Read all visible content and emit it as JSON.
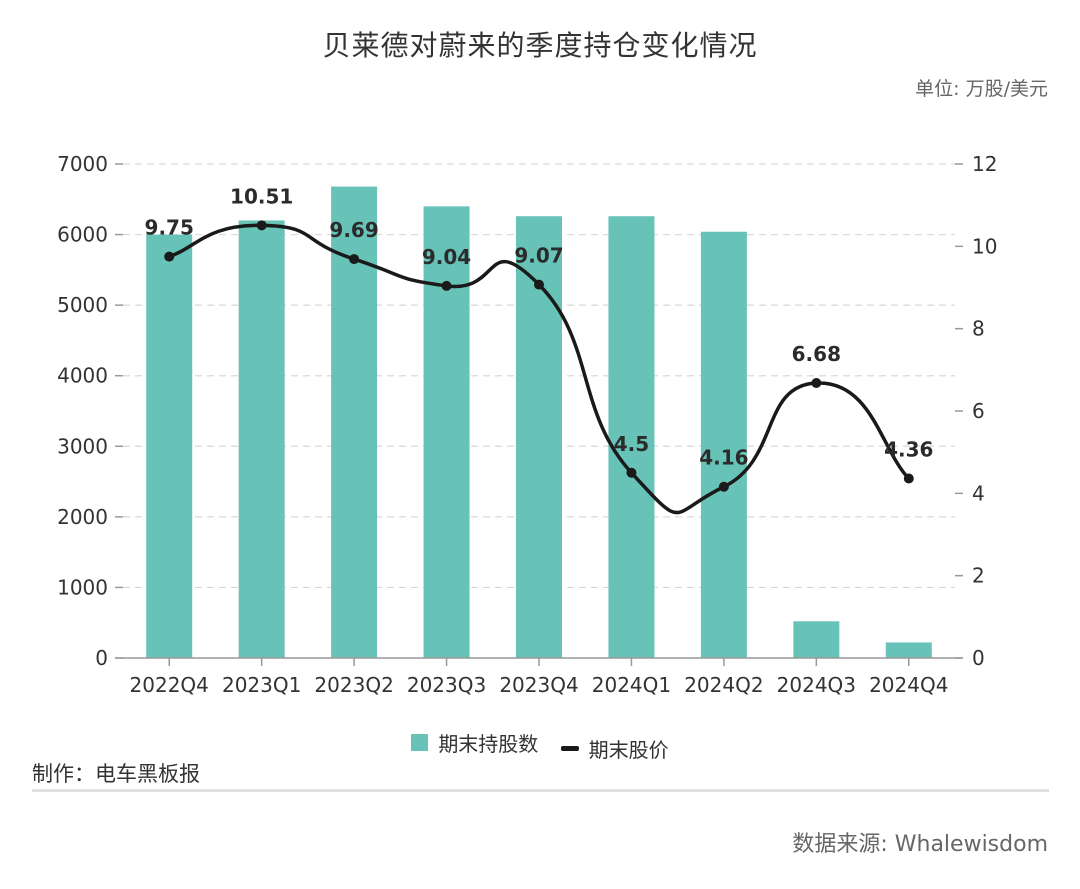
{
  "title": "贝莱德对蔚来的季度持仓变化情况",
  "unit_label": "单位: 万股/美元",
  "maker": "制作：电车黑板报",
  "source": "数据来源: Whalewisdom",
  "colors": {
    "bar": "#67c2b7",
    "line": "#1a1a1a",
    "grid": "#d9d9d9",
    "axis": "#999999"
  },
  "chart_data": {
    "type": "bar",
    "categories": [
      "2022Q4",
      "2023Q1",
      "2023Q2",
      "2023Q3",
      "2023Q4",
      "2024Q1",
      "2024Q2",
      "2024Q3",
      "2024Q4"
    ],
    "series": [
      {
        "name": "期末持股数",
        "type": "bar",
        "axis": "left",
        "values": [
          6000,
          6200,
          6680,
          6400,
          6260,
          6260,
          6040,
          520,
          220
        ]
      },
      {
        "name": "期末股价",
        "type": "line",
        "axis": "right",
        "values": [
          9.75,
          10.51,
          9.69,
          9.04,
          9.07,
          4.5,
          4.16,
          6.68,
          4.36
        ],
        "labels": [
          "9.75",
          "10.51",
          "9.69",
          "9.04",
          "9.07",
          "4.5",
          "4.16",
          "6.68",
          "4.36"
        ]
      }
    ],
    "y_left": {
      "min": 0,
      "max": 7000,
      "ticks": [
        "0",
        "1000",
        "2000",
        "3000",
        "4000",
        "5000",
        "6000",
        "7000"
      ]
    },
    "y_right": {
      "min": 0,
      "max": 12,
      "ticks": [
        "0",
        "2",
        "4",
        "6",
        "8",
        "10",
        "12"
      ]
    },
    "legend": [
      "期末持股数",
      "期末股价"
    ],
    "legend_position": "bottom-center"
  }
}
